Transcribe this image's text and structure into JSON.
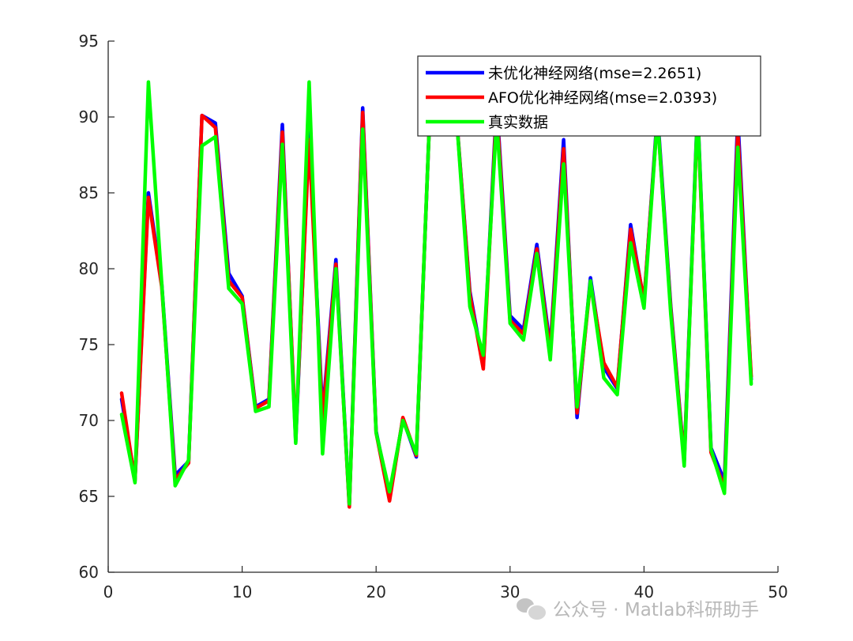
{
  "chart_data": {
    "type": "line",
    "xlim": [
      0,
      50
    ],
    "ylim": [
      60,
      95
    ],
    "xticks": [
      0,
      10,
      20,
      30,
      40,
      50
    ],
    "yticks": [
      60,
      65,
      70,
      75,
      80,
      85,
      90,
      95
    ],
    "grid": false,
    "legend_position": "top-right",
    "x": [
      1,
      2,
      3,
      4,
      5,
      6,
      7,
      8,
      9,
      10,
      11,
      12,
      13,
      14,
      15,
      16,
      17,
      18,
      19,
      20,
      21,
      22,
      23,
      24,
      25,
      26,
      27,
      28,
      29,
      30,
      31,
      32,
      33,
      34,
      35,
      36,
      37,
      38,
      39,
      40,
      41,
      42,
      43,
      44,
      45,
      46,
      47,
      48
    ],
    "series": [
      {
        "name": "未优化神经网络(mse=2.2651)",
        "color": "#0000ff",
        "values": [
          71.4,
          66.1,
          85.0,
          79.0,
          66.4,
          67.3,
          90.1,
          89.6,
          79.7,
          78.2,
          70.9,
          71.4,
          89.5,
          68.6,
          89.0,
          70.4,
          80.6,
          64.4,
          90.6,
          69.3,
          65.0,
          70.1,
          67.6,
          90.0,
          93.0,
          90.0,
          78.5,
          73.6,
          91.0,
          76.9,
          76.0,
          81.6,
          74.8,
          88.5,
          70.2,
          79.4,
          73.5,
          72.1,
          82.9,
          77.8,
          90.3,
          77.5,
          67.4,
          90.7,
          68.2,
          66.0,
          90.0,
          72.7
        ]
      },
      {
        "name": "AFO优化神经网络(mse=2.0393)",
        "color": "#ff0000",
        "values": [
          71.8,
          66.0,
          84.7,
          78.8,
          66.1,
          67.2,
          90.1,
          89.3,
          79.2,
          78.1,
          70.8,
          71.3,
          89.0,
          69.0,
          88.5,
          70.0,
          80.3,
          64.3,
          90.3,
          69.2,
          64.7,
          70.2,
          67.7,
          90.0,
          93.0,
          90.0,
          78.3,
          73.4,
          90.6,
          76.6,
          75.7,
          81.3,
          74.5,
          87.9,
          70.5,
          79.1,
          73.8,
          72.2,
          82.6,
          77.9,
          90.0,
          77.3,
          67.3,
          90.3,
          67.9,
          65.6,
          89.1,
          72.9
        ]
      },
      {
        "name": "真实数据",
        "color": "#00ff00",
        "values": [
          70.4,
          65.9,
          92.3,
          79.0,
          65.7,
          67.4,
          88.1,
          88.7,
          78.7,
          77.7,
          70.6,
          70.9,
          88.2,
          68.5,
          92.3,
          67.8,
          80.0,
          64.5,
          89.2,
          69.2,
          65.3,
          70.0,
          67.8,
          90.0,
          93.0,
          90.0,
          77.5,
          74.3,
          89.8,
          76.4,
          75.3,
          81.0,
          74.0,
          86.9,
          70.9,
          79.2,
          72.8,
          71.7,
          81.7,
          77.4,
          90.0,
          77.0,
          67.0,
          90.5,
          68.1,
          65.2,
          88.0,
          72.4
        ]
      }
    ]
  },
  "watermark": {
    "text": "公众号 · Matlab科研助手",
    "icon": "wechat-icon"
  }
}
